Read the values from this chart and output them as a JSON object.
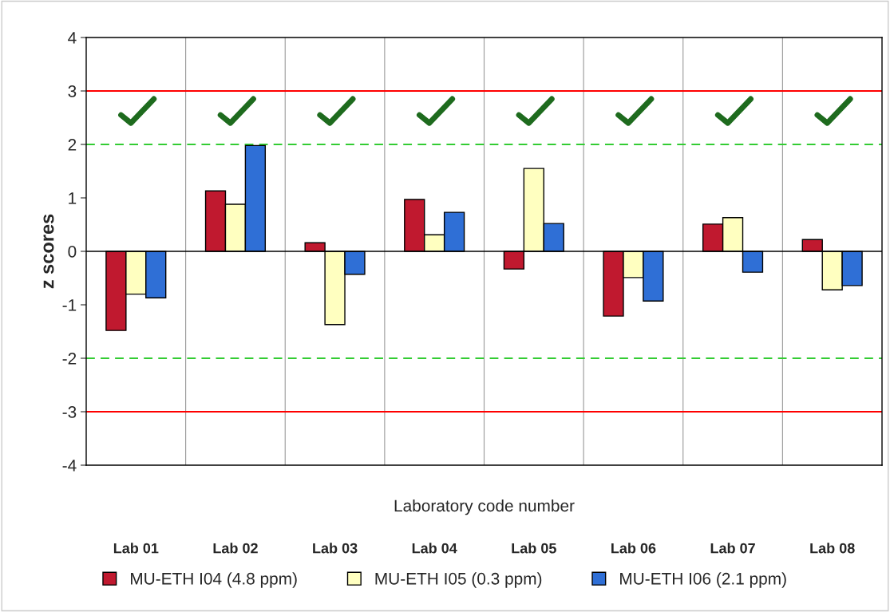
{
  "chart_data": {
    "type": "bar",
    "ylabel": "z scores",
    "xlabel": "Laboratory code number",
    "categories": [
      "Lab 01",
      "Lab 02",
      "Lab 03",
      "Lab 04",
      "Lab 05",
      "Lab 06",
      "Lab 07",
      "Lab 08"
    ],
    "series": [
      {
        "name": "MU-ETH I04 (4.8 ppm)",
        "color": "#c0192f",
        "values": [
          -1.48,
          1.13,
          0.16,
          0.97,
          -0.33,
          -1.21,
          0.51,
          0.22
        ]
      },
      {
        "name": "MU-ETH I05 (0.3 ppm)",
        "color": "#ffffc0",
        "values": [
          -0.8,
          0.88,
          -1.37,
          0.31,
          1.55,
          -0.49,
          0.63,
          -0.72
        ]
      },
      {
        "name": "MU-ETH I06 (2.1 ppm)",
        "color": "#2f6fd6",
        "values": [
          -0.87,
          1.98,
          -0.43,
          0.73,
          0.52,
          -0.93,
          -0.39,
          -0.64
        ]
      }
    ],
    "ylim": [
      -4,
      4
    ],
    "yticks": [
      -4,
      -3,
      -2,
      -1,
      0,
      1,
      2,
      3,
      4
    ],
    "grid": "x",
    "legend": "bottom",
    "ref_lines": [
      {
        "axis": "y",
        "value": 3,
        "color": "#ff0000",
        "line_style": "solid"
      },
      {
        "axis": "y",
        "value": 2,
        "color": "#33cc33",
        "line_style": "dashed"
      },
      {
        "axis": "y",
        "value": -2,
        "color": "#33cc33",
        "line_style": "dashed"
      },
      {
        "axis": "y",
        "value": -3,
        "color": "#ff0000",
        "line_style": "solid"
      }
    ]
  }
}
